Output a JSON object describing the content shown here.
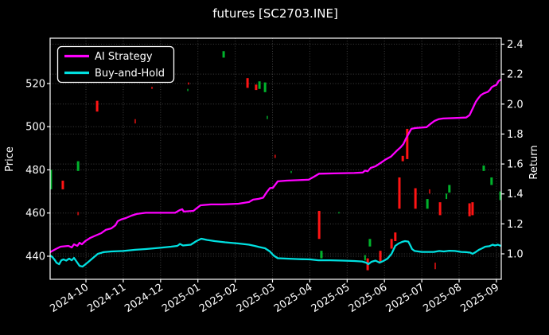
{
  "page": {
    "background": "#000000",
    "text_color": "#ffffff",
    "grid_color": "#808080",
    "spine_color": "#ffffff"
  },
  "chart_data": {
    "type": "line",
    "title": "futures [SC2703.INE]",
    "legend_position": "upper left",
    "grid": true,
    "x_axis": {
      "tick_labels": [
        "2024-10",
        "2024-11",
        "2024-12",
        "2025-01",
        "2025-02",
        "2025-03",
        "2025-04",
        "2025-05",
        "2025-06",
        "2025-07",
        "2025-08",
        "2025-09"
      ],
      "tick_positions": [
        0,
        1,
        2,
        3,
        4,
        5,
        6,
        7,
        8,
        9,
        10,
        11
      ],
      "range": [
        -0.96,
        11.13
      ]
    },
    "left_axis": {
      "label": "Price",
      "ticks": [
        440,
        460,
        480,
        500,
        520
      ],
      "range": [
        429.3,
        541.0
      ]
    },
    "right_axis": {
      "label": "Return",
      "ticks": [
        1.0,
        1.2,
        1.4,
        1.6,
        1.8,
        2.0,
        2.2,
        2.4
      ],
      "range": [
        0.83,
        2.44
      ]
    },
    "series": [
      {
        "name": "AI Strategy",
        "color": "#ff00ff",
        "axis": "right",
        "points": [
          [
            -0.96,
            1.011
          ],
          [
            -0.81,
            1.032
          ],
          [
            -0.68,
            1.048
          ],
          [
            -0.47,
            1.053
          ],
          [
            -0.38,
            1.043
          ],
          [
            -0.32,
            1.064
          ],
          [
            -0.23,
            1.053
          ],
          [
            -0.17,
            1.074
          ],
          [
            -0.11,
            1.064
          ],
          [
            -0.02,
            1.085
          ],
          [
            0.11,
            1.106
          ],
          [
            0.26,
            1.122
          ],
          [
            0.41,
            1.138
          ],
          [
            0.53,
            1.16
          ],
          [
            0.68,
            1.17
          ],
          [
            0.79,
            1.191
          ],
          [
            0.85,
            1.218
          ],
          [
            0.94,
            1.229
          ],
          [
            1.07,
            1.239
          ],
          [
            1.22,
            1.255
          ],
          [
            1.36,
            1.266
          ],
          [
            1.6,
            1.274
          ],
          [
            2.39,
            1.274
          ],
          [
            2.52,
            1.293
          ],
          [
            2.58,
            1.298
          ],
          [
            2.62,
            1.282
          ],
          [
            2.88,
            1.287
          ],
          [
            2.99,
            1.309
          ],
          [
            3.07,
            1.324
          ],
          [
            3.35,
            1.33
          ],
          [
            3.67,
            1.33
          ],
          [
            4.09,
            1.335
          ],
          [
            4.37,
            1.346
          ],
          [
            4.48,
            1.362
          ],
          [
            4.63,
            1.367
          ],
          [
            4.75,
            1.375
          ],
          [
            4.84,
            1.41
          ],
          [
            4.93,
            1.439
          ],
          [
            5.01,
            1.441
          ],
          [
            5.14,
            1.484
          ],
          [
            5.37,
            1.489
          ],
          [
            5.69,
            1.492
          ],
          [
            5.97,
            1.495
          ],
          [
            6.12,
            1.516
          ],
          [
            6.25,
            1.535
          ],
          [
            6.65,
            1.537
          ],
          [
            7.19,
            1.54
          ],
          [
            7.42,
            1.543
          ],
          [
            7.48,
            1.556
          ],
          [
            7.55,
            1.551
          ],
          [
            7.63,
            1.574
          ],
          [
            7.76,
            1.585
          ],
          [
            7.89,
            1.606
          ],
          [
            8.02,
            1.628
          ],
          [
            8.17,
            1.649
          ],
          [
            8.32,
            1.686
          ],
          [
            8.44,
            1.713
          ],
          [
            8.51,
            1.734
          ],
          [
            8.57,
            1.766
          ],
          [
            8.66,
            1.809
          ],
          [
            8.72,
            1.835
          ],
          [
            8.83,
            1.84
          ],
          [
            9.13,
            1.846
          ],
          [
            9.23,
            1.867
          ],
          [
            9.34,
            1.888
          ],
          [
            9.45,
            1.899
          ],
          [
            9.57,
            1.904
          ],
          [
            9.89,
            1.907
          ],
          [
            10.19,
            1.91
          ],
          [
            10.28,
            1.926
          ],
          [
            10.36,
            1.968
          ],
          [
            10.45,
            2.016
          ],
          [
            10.51,
            2.037
          ],
          [
            10.58,
            2.059
          ],
          [
            10.66,
            2.072
          ],
          [
            10.77,
            2.082
          ],
          [
            10.83,
            2.096
          ],
          [
            10.87,
            2.112
          ],
          [
            10.94,
            2.122
          ],
          [
            11.0,
            2.128
          ],
          [
            11.06,
            2.154
          ],
          [
            11.13,
            2.165
          ]
        ]
      },
      {
        "name": "Buy-and-Hold",
        "color": "#00e0e0",
        "axis": "right",
        "points": [
          [
            -0.96,
            0.989
          ],
          [
            -0.9,
            0.979
          ],
          [
            -0.83,
            0.957
          ],
          [
            -0.79,
            0.941
          ],
          [
            -0.72,
            0.931
          ],
          [
            -0.66,
            0.957
          ],
          [
            -0.6,
            0.963
          ],
          [
            -0.53,
            0.955
          ],
          [
            -0.45,
            0.968
          ],
          [
            -0.38,
            0.957
          ],
          [
            -0.32,
            0.973
          ],
          [
            -0.23,
            0.941
          ],
          [
            -0.17,
            0.92
          ],
          [
            -0.09,
            0.915
          ],
          [
            0.04,
            0.941
          ],
          [
            0.19,
            0.973
          ],
          [
            0.32,
            1.0
          ],
          [
            0.47,
            1.011
          ],
          [
            0.68,
            1.016
          ],
          [
            1.0,
            1.019
          ],
          [
            1.32,
            1.027
          ],
          [
            1.6,
            1.032
          ],
          [
            1.96,
            1.04
          ],
          [
            2.28,
            1.048
          ],
          [
            2.45,
            1.053
          ],
          [
            2.52,
            1.066
          ],
          [
            2.6,
            1.056
          ],
          [
            2.81,
            1.061
          ],
          [
            2.96,
            1.085
          ],
          [
            3.09,
            1.101
          ],
          [
            3.24,
            1.093
          ],
          [
            3.45,
            1.085
          ],
          [
            3.73,
            1.077
          ],
          [
            4.09,
            1.069
          ],
          [
            4.37,
            1.061
          ],
          [
            4.52,
            1.053
          ],
          [
            4.65,
            1.045
          ],
          [
            4.8,
            1.037
          ],
          [
            4.93,
            1.016
          ],
          [
            5.03,
            0.989
          ],
          [
            5.14,
            0.971
          ],
          [
            5.37,
            0.968
          ],
          [
            5.69,
            0.965
          ],
          [
            6.01,
            0.963
          ],
          [
            6.23,
            0.957
          ],
          [
            6.55,
            0.957
          ],
          [
            6.87,
            0.955
          ],
          [
            7.19,
            0.952
          ],
          [
            7.4,
            0.949
          ],
          [
            7.51,
            0.941
          ],
          [
            7.57,
            0.931
          ],
          [
            7.65,
            0.947
          ],
          [
            7.76,
            0.955
          ],
          [
            7.87,
            0.941
          ],
          [
            7.97,
            0.952
          ],
          [
            8.08,
            0.968
          ],
          [
            8.19,
            1.0
          ],
          [
            8.29,
            1.053
          ],
          [
            8.38,
            1.069
          ],
          [
            8.47,
            1.08
          ],
          [
            8.55,
            1.085
          ],
          [
            8.64,
            1.082
          ],
          [
            8.7,
            1.053
          ],
          [
            8.74,
            1.032
          ],
          [
            8.81,
            1.019
          ],
          [
            9.0,
            1.013
          ],
          [
            9.32,
            1.013
          ],
          [
            9.47,
            1.019
          ],
          [
            9.59,
            1.016
          ],
          [
            9.74,
            1.021
          ],
          [
            9.89,
            1.019
          ],
          [
            10.06,
            1.013
          ],
          [
            10.19,
            1.011
          ],
          [
            10.3,
            1.008
          ],
          [
            10.36,
            1.0
          ],
          [
            10.45,
            1.013
          ],
          [
            10.53,
            1.027
          ],
          [
            10.62,
            1.037
          ],
          [
            10.7,
            1.048
          ],
          [
            10.81,
            1.051
          ],
          [
            10.9,
            1.061
          ],
          [
            10.96,
            1.056
          ],
          [
            11.04,
            1.061
          ],
          [
            11.09,
            1.056
          ],
          [
            11.13,
            1.053
          ]
        ]
      }
    ],
    "candles": {
      "axis": "left",
      "up_color": "#00b32c",
      "down_color": "#ff1414",
      "item_format": [
        "month",
        "price_top",
        "price_bottom",
        "direction(g=up,r=down)",
        "bar_width_px",
        "opacity"
      ],
      "items": [
        [
          -0.94,
          480,
          471,
          "g",
          3,
          1
        ],
        [
          -0.62,
          475,
          471,
          "r",
          3,
          1
        ],
        [
          -0.21,
          484,
          479.5,
          "g",
          3,
          1
        ],
        [
          -0.21,
          460.5,
          459,
          "r",
          2,
          0.7
        ],
        [
          0.3,
          512,
          507,
          "r",
          3,
          1
        ],
        [
          1.32,
          503.5,
          501.5,
          "r",
          2,
          0.7
        ],
        [
          1.77,
          518.5,
          517.5,
          "r",
          2,
          0.7
        ],
        [
          2.73,
          517.5,
          516.5,
          "g",
          2,
          0.7
        ],
        [
          2.75,
          520.5,
          519.5,
          "r",
          2,
          0.7
        ],
        [
          3.69,
          535,
          532,
          "g",
          3,
          1
        ],
        [
          4.33,
          522.5,
          518,
          "r",
          3,
          1
        ],
        [
          4.56,
          519.5,
          517,
          "r",
          3,
          1
        ],
        [
          4.65,
          521,
          517.5,
          "g",
          3,
          1
        ],
        [
          4.8,
          520.5,
          516,
          "g",
          3,
          1
        ],
        [
          4.86,
          505,
          503.5,
          "g",
          2,
          0.7
        ],
        [
          5.07,
          487,
          485.5,
          "r",
          2,
          0.7
        ],
        [
          5.5,
          479.5,
          478.5,
          "g",
          2,
          0.7
        ],
        [
          6.25,
          461,
          448,
          "r",
          3,
          1
        ],
        [
          6.31,
          442.5,
          439,
          "g",
          3,
          1
        ],
        [
          6.78,
          460.5,
          459.8,
          "g",
          2,
          0.7
        ],
        [
          7.48,
          440.5,
          438,
          "g",
          2,
          1
        ],
        [
          7.55,
          439,
          433.5,
          "r",
          3,
          1
        ],
        [
          7.61,
          448,
          444.5,
          "g",
          3,
          1
        ],
        [
          7.89,
          442.5,
          437,
          "r",
          3,
          1
        ],
        [
          8.19,
          448,
          443.5,
          "r",
          3,
          1
        ],
        [
          8.29,
          451,
          447,
          "r",
          3,
          1
        ],
        [
          8.4,
          476.5,
          462,
          "r",
          3,
          1
        ],
        [
          8.49,
          486.5,
          484,
          "r",
          3,
          1
        ],
        [
          8.61,
          499,
          485,
          "r",
          3,
          1
        ],
        [
          8.83,
          471.5,
          462,
          "r",
          3,
          1
        ],
        [
          9.15,
          466.5,
          462,
          "g",
          3,
          1
        ],
        [
          9.21,
          471,
          469,
          "r",
          2,
          0.7
        ],
        [
          9.36,
          437,
          434,
          "r",
          2,
          0.7
        ],
        [
          9.49,
          465,
          459,
          "r",
          3,
          1
        ],
        [
          9.66,
          469,
          466.5,
          "g",
          2,
          1
        ],
        [
          9.74,
          473,
          469.5,
          "g",
          3,
          1
        ],
        [
          10.28,
          464.5,
          458.5,
          "r",
          3,
          1
        ],
        [
          10.36,
          465,
          459,
          "r",
          3,
          1
        ],
        [
          10.66,
          482,
          479.5,
          "g",
          3,
          1
        ],
        [
          10.87,
          476.5,
          473,
          "g",
          3,
          1
        ],
        [
          11.11,
          470,
          466,
          "g",
          3,
          1
        ]
      ]
    }
  }
}
